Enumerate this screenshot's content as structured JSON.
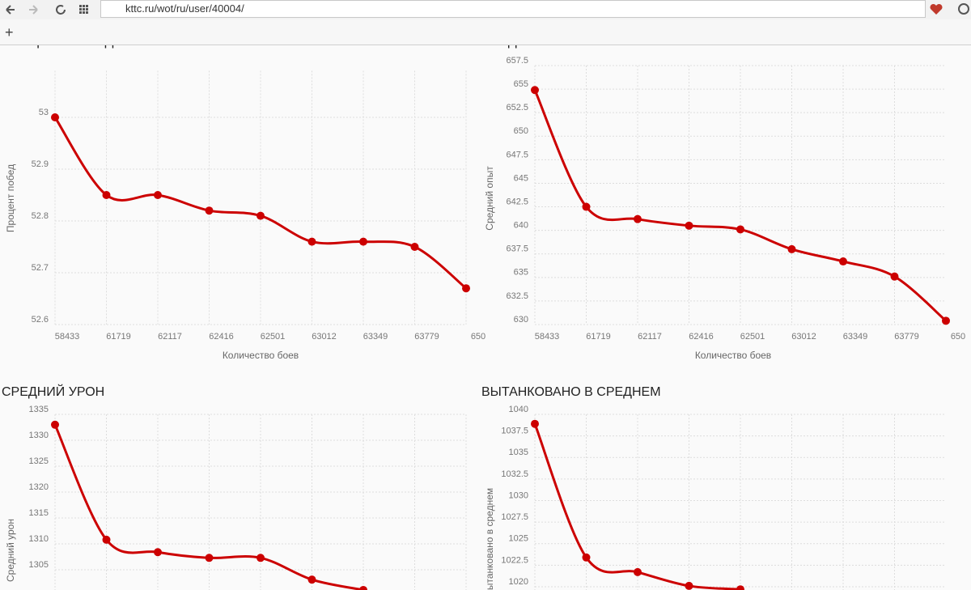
{
  "browser": {
    "url": "kttc.ru/wot/ru/user/40004/",
    "new_tab": "+"
  },
  "chart_data": [
    {
      "type": "line",
      "title": "ПРОЦЕНТ ПОБЕД",
      "y_label": "Процент побед",
      "x_label": "Количество боев",
      "categories": [
        "58433",
        "61719",
        "62117",
        "62416",
        "62501",
        "63012",
        "63349",
        "63779",
        "650"
      ],
      "values": [
        53.0,
        52.85,
        52.85,
        52.82,
        52.81,
        52.76,
        52.76,
        52.75,
        52.67
      ],
      "color": "#cc0000",
      "ylim": [
        52.6,
        53.09
      ],
      "yticks": [
        52.6,
        52.7,
        52.8,
        52.9,
        53
      ],
      "grid": true
    },
    {
      "type": "line",
      "title": "СРЕДНИЙ ОПЫТ",
      "y_label": "Средний опыт",
      "x_label": "Количество боев",
      "categories": [
        "58433",
        "61719",
        "62117",
        "62416",
        "62501",
        "63012",
        "63349",
        "63779",
        "650"
      ],
      "values": [
        654.9,
        642.5,
        641.2,
        640.5,
        640.1,
        638.0,
        636.7,
        635.1,
        630.4
      ],
      "color": "#cc0000",
      "ylim": [
        630,
        657.5
      ],
      "yticks": [
        630,
        632.5,
        635,
        637.5,
        640,
        642.5,
        645,
        647.5,
        650,
        652.5,
        655,
        657.5
      ],
      "grid": true
    },
    {
      "type": "line",
      "title": "СРЕДНИЙ УРОН",
      "y_label": "Средний урон",
      "values": [
        1333,
        1310.8,
        1308.4,
        1307.3,
        1307.3,
        1303.1,
        1301.1
      ],
      "color": "#cc0000",
      "ylim": [
        1290,
        1335
      ],
      "yticks": [
        1305,
        1310,
        1315,
        1320,
        1325,
        1330,
        1335
      ],
      "grid": true
    },
    {
      "type": "line",
      "title": "ВЫТАНКОВАНО В СРЕДНЕМ",
      "y_label": "Вытанковано в среднем",
      "values": [
        1038.9,
        1023.4,
        1021.7,
        1020.1,
        1019.7
      ],
      "color": "#cc0000",
      "ylim": [
        1010,
        1040
      ],
      "yticks": [
        1020,
        1022.5,
        1025,
        1027.5,
        1030,
        1032.5,
        1035,
        1037.5,
        1040
      ],
      "grid": true
    }
  ]
}
